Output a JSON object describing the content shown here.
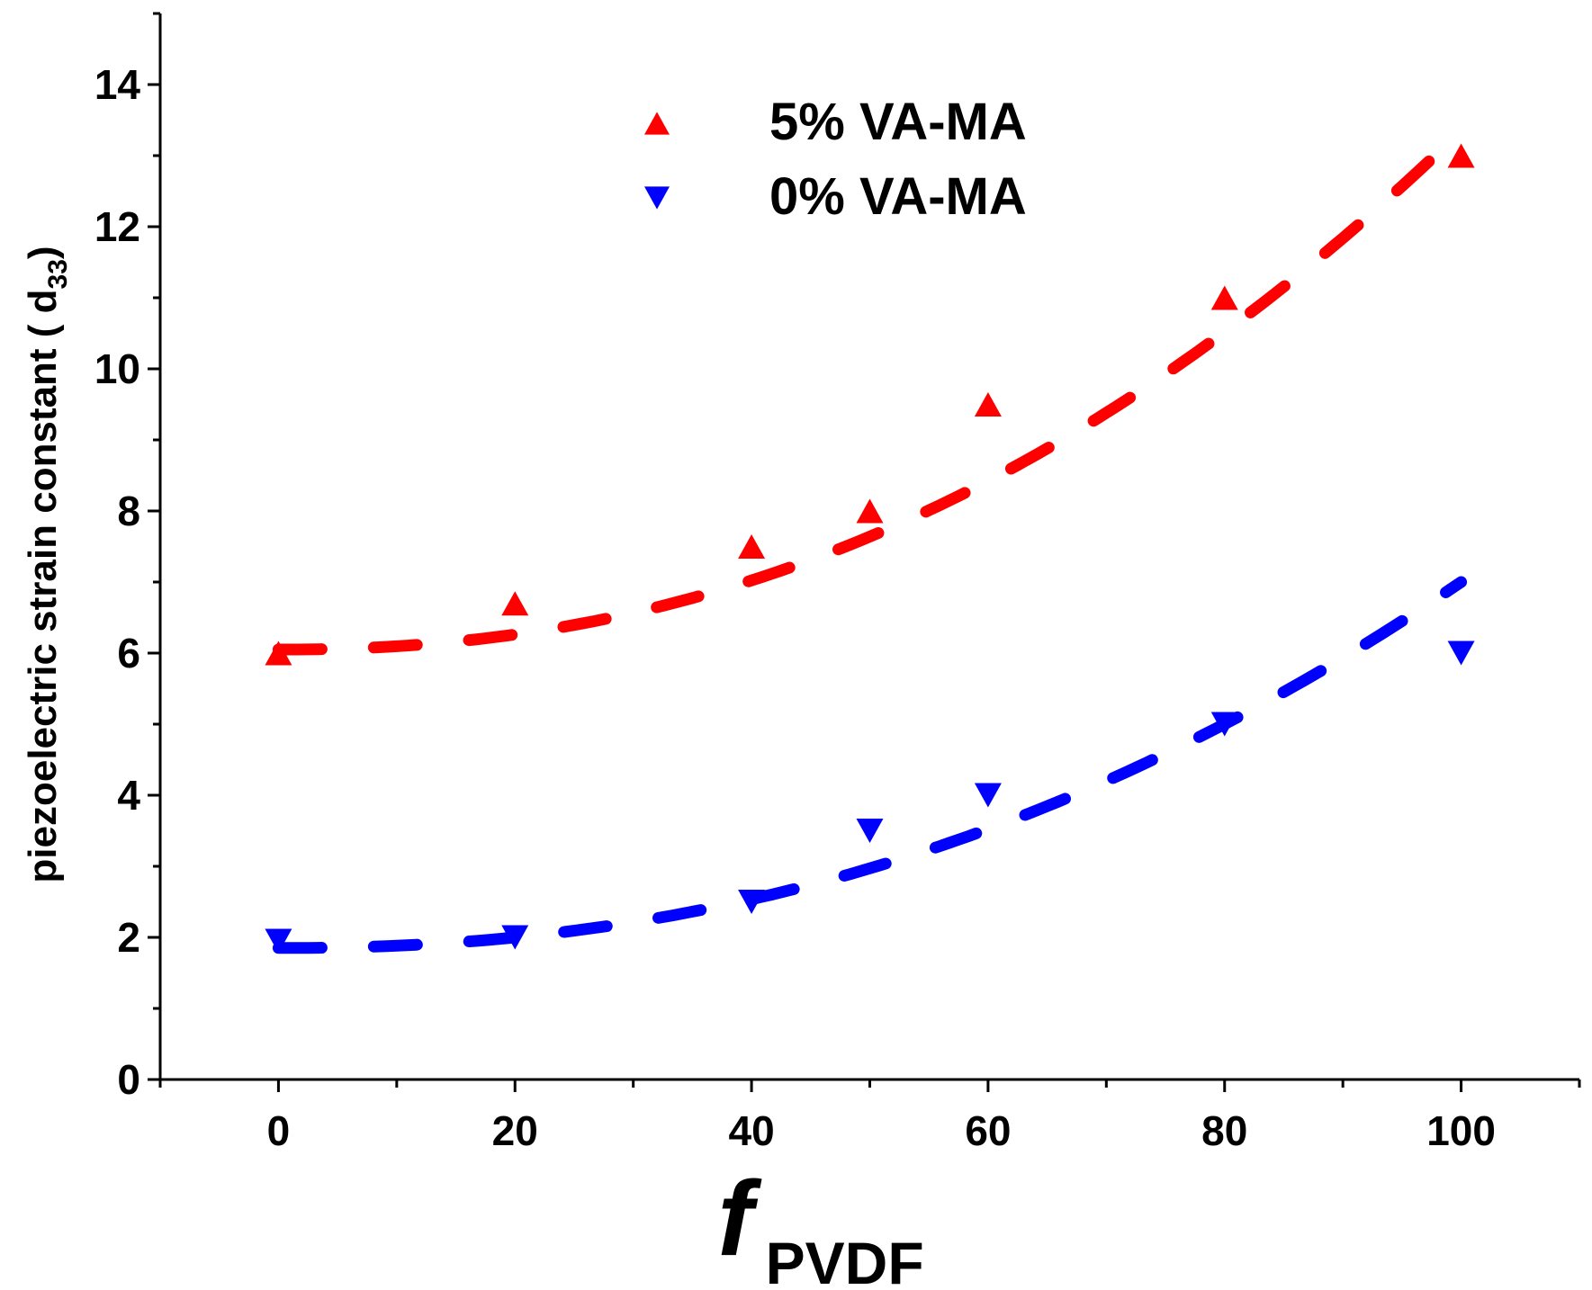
{
  "chart_data": {
    "type": "scatter",
    "title": "",
    "xlabel": {
      "main": "f",
      "sub": "PVDF"
    },
    "ylabel": {
      "main": "piezoelectric strain constant ( d",
      "sub": "33",
      "close": ")"
    },
    "xlim": [
      -10,
      110
    ],
    "ylim": [
      0,
      15
    ],
    "xticks": [
      0,
      20,
      40,
      60,
      80,
      100
    ],
    "yticks": [
      0,
      2,
      4,
      6,
      8,
      10,
      12,
      14
    ],
    "grid": false,
    "legend_position": "top-center",
    "series": [
      {
        "name": "5% VA-MA",
        "color": "#ff0000",
        "marker": "triangle-up",
        "x": [
          0,
          20,
          40,
          50,
          60,
          80,
          100
        ],
        "y": [
          6.0,
          6.7,
          7.5,
          8.0,
          9.5,
          11.0,
          13.0
        ],
        "fit": {
          "style": "dashed",
          "x_start": 0,
          "x_end": 100,
          "y_start": 6.05,
          "y_end": 13.35,
          "exponent": 2.2
        }
      },
      {
        "name": "0% VA-MA",
        "color": "#0000ff",
        "marker": "triangle-down",
        "x": [
          0,
          20,
          40,
          50,
          60,
          80,
          100
        ],
        "y": [
          1.95,
          2.0,
          2.5,
          3.5,
          4.0,
          5.0,
          6.0
        ],
        "fit": {
          "style": "dashed",
          "x_start": 0,
          "x_end": 100,
          "y_start": 1.85,
          "y_end": 7.0,
          "exponent": 2.2
        }
      }
    ]
  }
}
